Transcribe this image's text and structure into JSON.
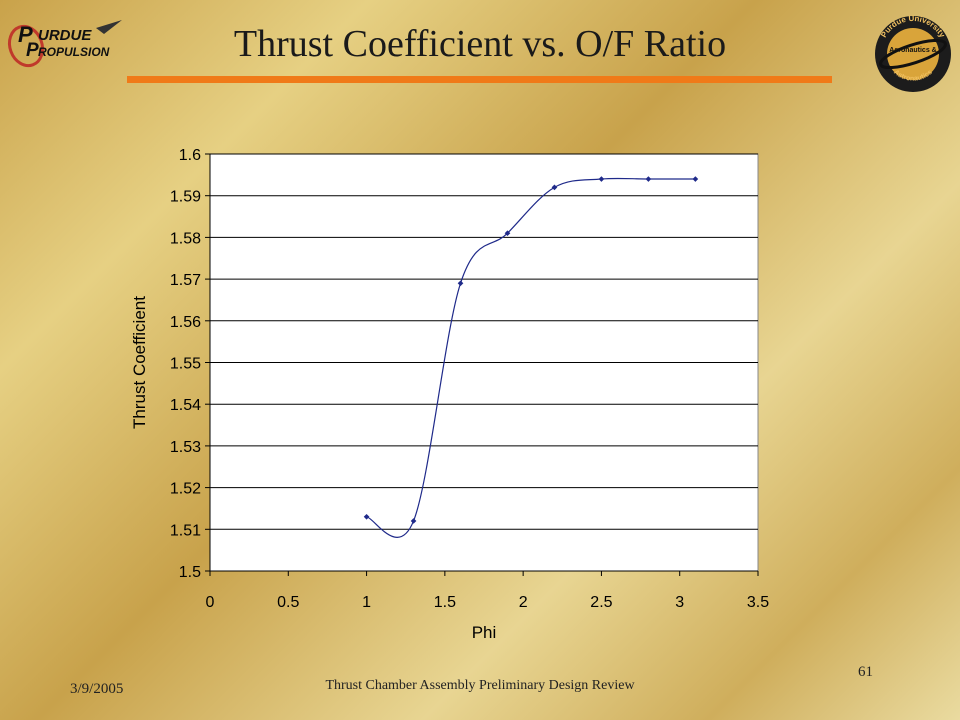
{
  "slide": {
    "title": "Thrust Coefficient vs. O/F Ratio",
    "date": "3/9/2005",
    "footer": "Thrust Chamber Assembly Preliminary Design Review",
    "page_number": "61"
  },
  "logos": {
    "left_text_1": "URDUE",
    "left_text_2": "ROPULSION",
    "right_ring_top": "Purdue University",
    "right_ring_mid": "Aeronautics &",
    "right_ring_bottom": "Astronautics"
  },
  "colors": {
    "accent_rule": "#f07a18",
    "series": "#1f2a8a",
    "gridline": "#000000",
    "plot_bg": "#ffffff"
  },
  "chart_data": {
    "type": "scatter",
    "xlabel": "Phi",
    "ylabel": "Thrust Coefficient",
    "xlim": [
      0,
      3.5
    ],
    "ylim": [
      1.5,
      1.6
    ],
    "x_ticks": [
      "0",
      "0.5",
      "1",
      "1.5",
      "2",
      "2.5",
      "3",
      "3.5"
    ],
    "y_ticks": [
      "1.5",
      "1.51",
      "1.52",
      "1.53",
      "1.54",
      "1.55",
      "1.56",
      "1.57",
      "1.58",
      "1.59",
      "1.6"
    ],
    "grid": "horizontal",
    "smoothed_line": true,
    "series": [
      {
        "x": [
          1.0,
          1.3,
          1.6,
          1.9,
          2.2,
          2.5,
          2.8,
          3.1
        ],
        "y": [
          1.513,
          1.512,
          1.569,
          1.581,
          1.592,
          1.594,
          1.594,
          1.594
        ]
      }
    ]
  }
}
